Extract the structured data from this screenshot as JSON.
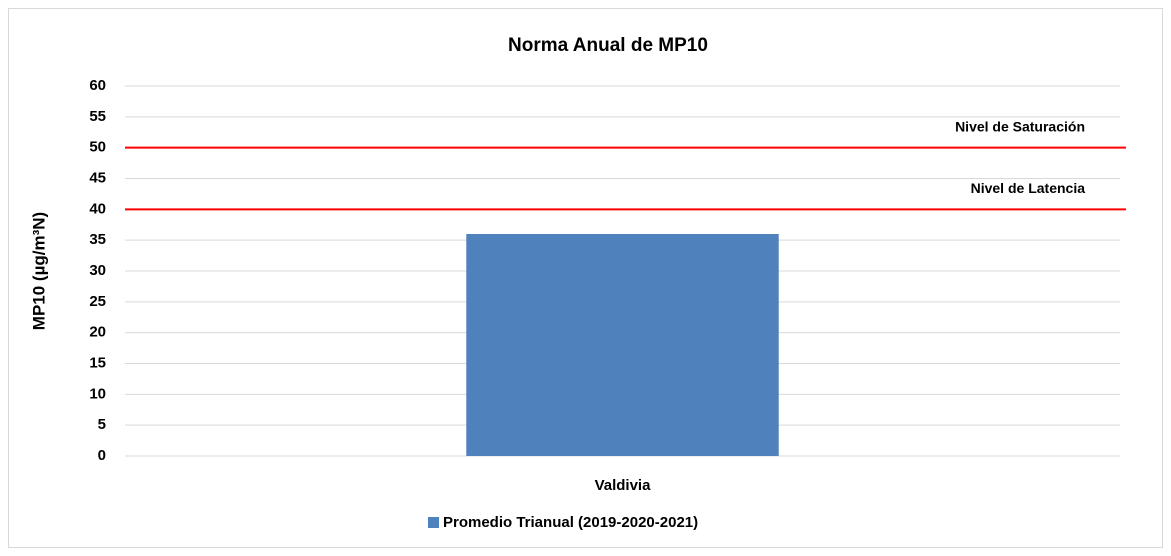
{
  "chart_data": {
    "type": "bar",
    "title": "Norma Anual de MP10",
    "y_label": "MP10 (µg/m³N)",
    "categories": [
      "Valdivia"
    ],
    "series": [
      {
        "name": "Promedio Trianual (2019-2020-2021)",
        "color": "#4f81bd",
        "values": [
          36
        ]
      }
    ],
    "ylim": [
      0,
      60
    ],
    "yticks": [
      0,
      5,
      10,
      15,
      20,
      25,
      30,
      35,
      40,
      45,
      50,
      55,
      60
    ],
    "grid": true,
    "reference_lines": [
      {
        "value": 50,
        "label": "Nivel de Saturación",
        "color": "#ff0000"
      },
      {
        "value": 40,
        "label": "Nivel de Latencia",
        "color": "#ff0000"
      }
    ],
    "legend": "bottom"
  }
}
